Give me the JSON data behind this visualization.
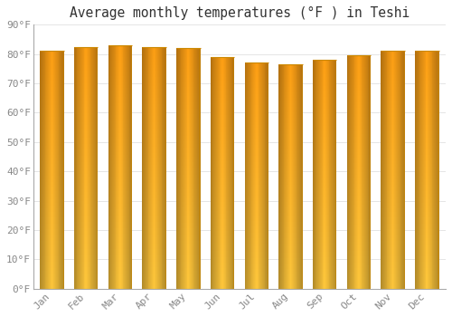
{
  "months": [
    "Jan",
    "Feb",
    "Mar",
    "Apr",
    "May",
    "Jun",
    "Jul",
    "Aug",
    "Sep",
    "Oct",
    "Nov",
    "Dec"
  ],
  "values": [
    81,
    82.5,
    83,
    82.5,
    82,
    79,
    77,
    76.5,
    78,
    79.5,
    81,
    81
  ],
  "title": "Average monthly temperatures (°F ) in Teshi",
  "ylim": [
    0,
    90
  ],
  "yticks": [
    0,
    10,
    20,
    30,
    40,
    50,
    60,
    70,
    80,
    90
  ],
  "ytick_labels": [
    "0°F",
    "10°F",
    "20°F",
    "30°F",
    "40°F",
    "50°F",
    "60°F",
    "70°F",
    "80°F",
    "90°F"
  ],
  "bar_color_center": "#FFB300",
  "bar_color_edge_left": "#E8890A",
  "bar_color_edge_right": "#CC7700",
  "bar_color_light": "#FFCF4D",
  "background_color": "#FFFFFF",
  "grid_color": "#E0E0E0",
  "title_fontsize": 10.5,
  "tick_fontsize": 8,
  "title_font": "monospace",
  "bar_width": 0.7
}
